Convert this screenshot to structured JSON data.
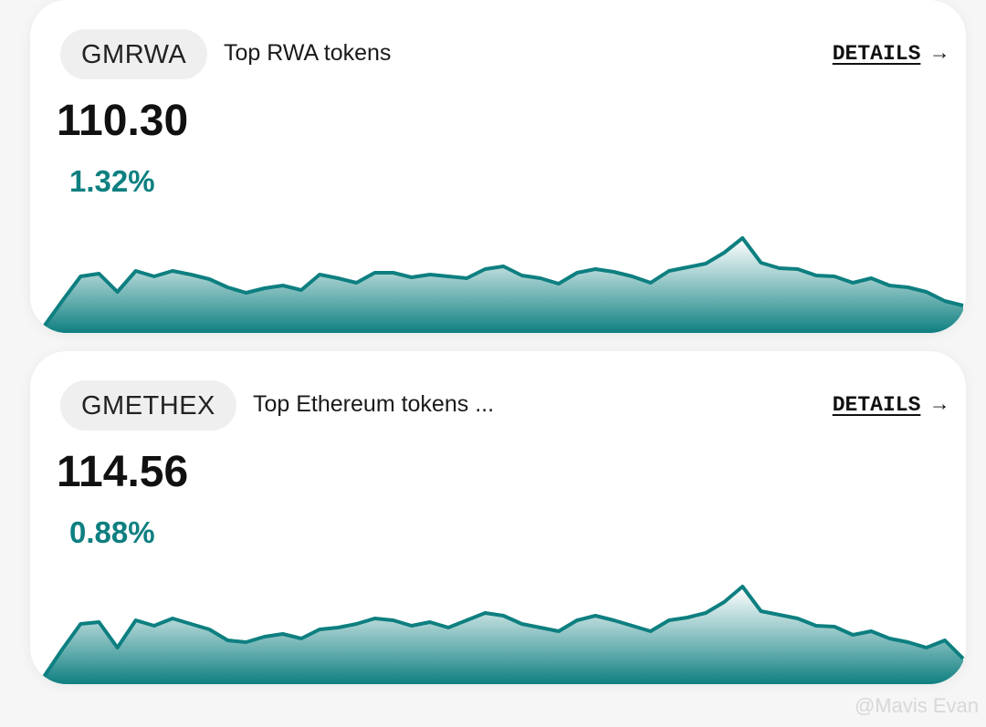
{
  "cards": [
    {
      "ticker": "GMRWA",
      "description": "Top RWA tokens",
      "price": "110.30",
      "change": "1.32%",
      "link": "DETAILS",
      "arrow": "→",
      "chart": {
        "type": "area",
        "color": "#0e7f80",
        "ylim": [
          0,
          110
        ],
        "values": [
          7,
          35,
          62,
          65,
          45,
          68,
          62,
          68,
          64,
          59,
          50,
          44,
          49,
          52,
          47,
          64,
          60,
          55,
          66,
          66,
          61,
          64,
          62,
          60,
          70,
          73,
          63,
          60,
          54,
          66,
          70,
          67,
          62,
          55,
          68,
          72,
          76,
          88,
          104,
          77,
          71,
          70,
          63,
          62,
          55,
          60,
          52,
          50,
          45,
          35,
          30
        ]
      }
    },
    {
      "ticker": "GMETHEX",
      "description": "Top Ethereum tokens ...",
      "price": "114.56",
      "change": "0.88%",
      "link": "DETAILS",
      "arrow": "→",
      "chart": {
        "type": "area",
        "color": "#0e7f80",
        "ylim": [
          0,
          110
        ],
        "values": [
          8,
          38,
          66,
          68,
          40,
          70,
          64,
          72,
          66,
          60,
          48,
          46,
          52,
          55,
          50,
          60,
          62,
          66,
          72,
          70,
          64,
          68,
          62,
          70,
          78,
          75,
          66,
          62,
          58,
          70,
          75,
          70,
          64,
          58,
          70,
          73,
          78,
          90,
          107,
          80,
          76,
          72,
          64,
          63,
          54,
          58,
          50,
          46,
          40,
          48,
          28
        ]
      }
    }
  ],
  "watermark": "@Mavis Evan"
}
